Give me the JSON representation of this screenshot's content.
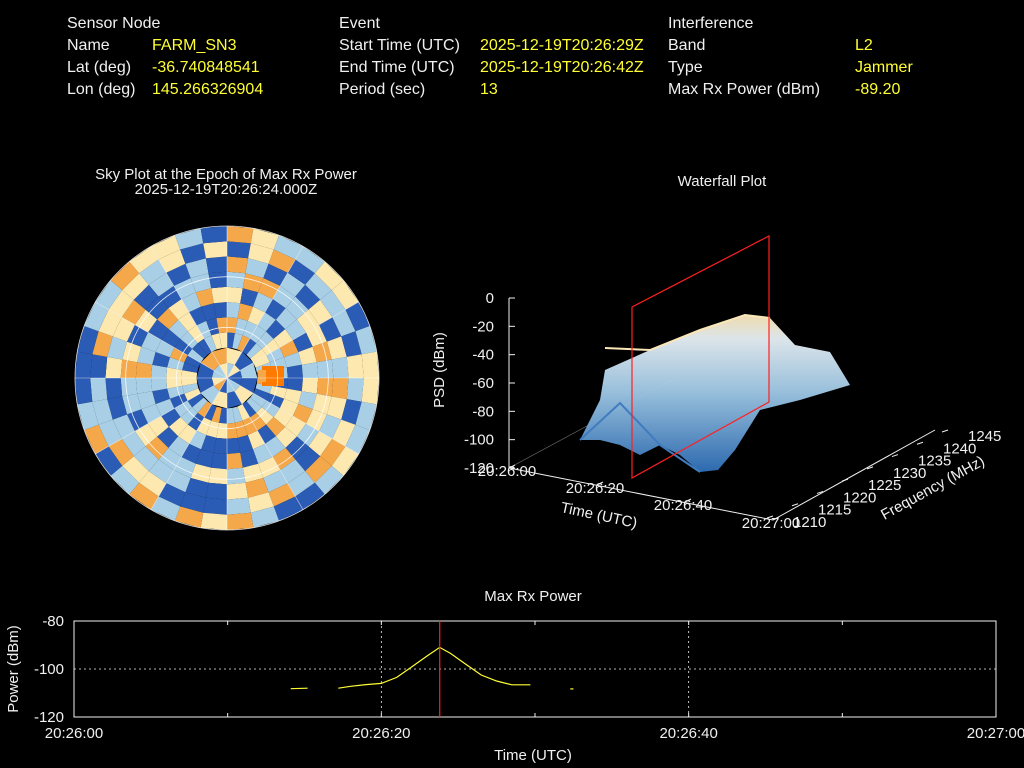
{
  "header": {
    "sensor": {
      "title": "Sensor Node",
      "rows": [
        {
          "label": "Name",
          "value": "FARM_SN3"
        },
        {
          "label": "Lat (deg)",
          "value": "-36.740848541"
        },
        {
          "label": "Lon (deg)",
          "value": "145.266326904"
        }
      ]
    },
    "event": {
      "title": "Event",
      "rows": [
        {
          "label": "Start Time (UTC)",
          "value": "2025-12-19T20:26:29Z"
        },
        {
          "label": "End Time (UTC)",
          "value": "2025-12-19T20:26:42Z"
        },
        {
          "label": "Period (sec)",
          "value": "13"
        }
      ]
    },
    "interference": {
      "title": "Interference",
      "rows": [
        {
          "label": "Band",
          "value": "L2"
        },
        {
          "label": "Type",
          "value": "Jammer"
        },
        {
          "label": "Max Rx Power (dBm)",
          "value": "-89.20"
        }
      ]
    }
  },
  "colors": {
    "label_text": "#f0f0f0",
    "value_text": "#ffff33",
    "marker_line": "#ff2020",
    "power_line": "#ffff33"
  },
  "chart_data": [
    {
      "type": "heatmap",
      "title": "Sky Plot at the Epoch of Max Rx Power",
      "subtitle": "2025-12-19T20:26:24.000Z",
      "projection": "polar",
      "colormap": [
        "#2b5cb5",
        "#a8cfe6",
        "#fde9b0",
        "#f5a84a",
        "#ff7a00"
      ],
      "hotspot": "orange cluster right of center"
    },
    {
      "type": "area",
      "title": "Waterfall Plot",
      "xlabel": "Time (UTC)",
      "ylabel": "Frequency (MHz)",
      "zlabel": "PSD (dBm)",
      "x_ticks": [
        "20:26:00",
        "20:26:20",
        "20:26:40",
        "20:27:00"
      ],
      "y_ticks": [
        "1210",
        "1215",
        "1220",
        "1225",
        "1230",
        "1235",
        "1240",
        "1245"
      ],
      "z_ticks": [
        "0",
        "-20",
        "-40",
        "-60",
        "-80",
        "-100",
        "-120"
      ],
      "zlim": [
        -120,
        0
      ],
      "surface_peak_dbm": -35,
      "surface_floor_dbm": -95,
      "marker_time": "20:26:24"
    },
    {
      "type": "line",
      "title": "Max Rx Power",
      "xlabel": "Time (UTC)",
      "ylabel": "Power (dBm)",
      "x_ticks": [
        "20:26:00",
        "20:26:20",
        "20:26:40",
        "20:27:00"
      ],
      "y_ticks": [
        "-80",
        "-100",
        "-120"
      ],
      "xlim_seconds": [
        0,
        60
      ],
      "ylim": [
        -120,
        -80
      ],
      "grid": true,
      "marker_time_seconds": 23.8,
      "segments": [
        [
          [
            14.1,
            -108.2
          ],
          [
            15.2,
            -108.0
          ]
        ],
        [
          [
            17.2,
            -108.0
          ],
          [
            18.0,
            -107.2
          ],
          [
            19.0,
            -106.5
          ],
          [
            20.0,
            -106.0
          ],
          [
            21.0,
            -103.5
          ],
          [
            22.0,
            -99.0
          ],
          [
            23.0,
            -94.5
          ],
          [
            23.8,
            -91.0
          ],
          [
            24.5,
            -93.5
          ],
          [
            25.5,
            -98.0
          ],
          [
            26.5,
            -102.5
          ],
          [
            27.5,
            -105.0
          ],
          [
            28.5,
            -106.6
          ],
          [
            29.7,
            -106.6
          ]
        ],
        [
          [
            32.3,
            -108.3
          ],
          [
            32.5,
            -108.3
          ]
        ]
      ]
    }
  ]
}
